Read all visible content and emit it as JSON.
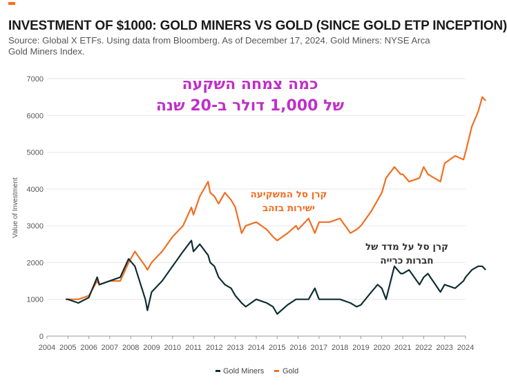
{
  "header": {
    "title": "INVESTMENT OF $1000: GOLD MINERS VS GOLD (SINCE GOLD ETP INCEPTION)",
    "subtitle": "Source: Global X ETFs. Using data from Bloomberg. As of December 17, 2024. Gold Miners: NYSE Arca Gold Miners Index."
  },
  "colors": {
    "accent": "#ff6a13",
    "gold": "#f26d21",
    "gold_miners": "#0f2e33",
    "annotation_headline": "#c02fc8",
    "annotation_gold": "#f26d21",
    "annotation_miners": "#333333"
  },
  "annotations": {
    "headline_line1": "כמה צמחה השקעה",
    "headline_line2": "של 1,000 דולר ב-20 שנה",
    "gold_line1": "קרן סל המשקיעה",
    "gold_line2": "ישירות בזהב",
    "miners_line1": "קרן סל על מדד של",
    "miners_line2": "חברות כרייה"
  },
  "chart_data": {
    "type": "line",
    "ylabel": "Value of Investment",
    "xlim": [
      2004,
      2024
    ],
    "ylim": [
      0,
      7000
    ],
    "x_ticks": [
      "2004",
      "2005",
      "2006",
      "2007",
      "2008",
      "2009",
      "2010",
      "2011",
      "2012",
      "2013",
      "2014",
      "2015",
      "2016",
      "2017",
      "2018",
      "2019",
      "2020",
      "2021",
      "2022",
      "2023",
      "2024"
    ],
    "y_ticks": [
      "0",
      "1000",
      "2000",
      "3000",
      "4000",
      "5000",
      "6000",
      "7000"
    ],
    "grid": true,
    "legend_position": "bottom-center",
    "x": [
      2004.9,
      2005.0,
      2005.5,
      2006.0,
      2006.4,
      2006.5,
      2007.0,
      2007.5,
      2007.9,
      2008.2,
      2008.7,
      2008.8,
      2009.0,
      2009.5,
      2010.0,
      2010.5,
      2010.9,
      2011.0,
      2011.3,
      2011.7,
      2011.8,
      2012.0,
      2012.2,
      2012.5,
      2012.8,
      2013.0,
      2013.3,
      2013.5,
      2014.0,
      2014.5,
      2014.8,
      2015.0,
      2015.5,
      2015.9,
      2016.0,
      2016.5,
      2016.8,
      2017.0,
      2017.5,
      2018.0,
      2018.5,
      2018.8,
      2019.0,
      2019.5,
      2019.8,
      2020.0,
      2020.2,
      2020.6,
      2020.9,
      2021.0,
      2021.3,
      2021.8,
      2022.0,
      2022.2,
      2022.8,
      2023.0,
      2023.5,
      2023.9,
      2024.0,
      2024.3,
      2024.6,
      2024.8,
      2024.96
    ],
    "series": [
      {
        "name": "Gold Miners",
        "values": [
          1000,
          1000,
          900,
          1050,
          1600,
          1400,
          1500,
          1600,
          2100,
          1900,
          1000,
          700,
          1200,
          1500,
          1900,
          2300,
          2600,
          2300,
          2500,
          2200,
          2000,
          1900,
          1600,
          1400,
          1300,
          1100,
          900,
          800,
          1000,
          900,
          800,
          600,
          850,
          1000,
          1000,
          1000,
          1300,
          1000,
          1000,
          1000,
          900,
          800,
          850,
          1200,
          1400,
          1300,
          1000,
          1900,
          1700,
          1700,
          1800,
          1400,
          1600,
          1700,
          1200,
          1400,
          1300,
          1500,
          1600,
          1800,
          1900,
          1900,
          1800
        ],
        "color": "#0f2e33"
      },
      {
        "name": "Gold",
        "values": [
          1000,
          1000,
          1000,
          1100,
          1500,
          1400,
          1500,
          1500,
          2000,
          2300,
          1900,
          1800,
          2000,
          2300,
          2700,
          3000,
          3500,
          3300,
          3800,
          4200,
          3900,
          3800,
          3600,
          3900,
          3700,
          3500,
          2800,
          3000,
          3100,
          2900,
          2700,
          2600,
          2800,
          3000,
          2900,
          3200,
          2800,
          3100,
          3100,
          3200,
          2800,
          2900,
          3000,
          3400,
          3700,
          3900,
          4300,
          4600,
          4400,
          4400,
          4200,
          4300,
          4600,
          4400,
          4200,
          4700,
          4900,
          4800,
          5000,
          5700,
          6100,
          6500,
          6400
        ]
      }
    ]
  },
  "legend": {
    "gold_miners_label": "Gold Miners",
    "gold_label": "Gold"
  }
}
